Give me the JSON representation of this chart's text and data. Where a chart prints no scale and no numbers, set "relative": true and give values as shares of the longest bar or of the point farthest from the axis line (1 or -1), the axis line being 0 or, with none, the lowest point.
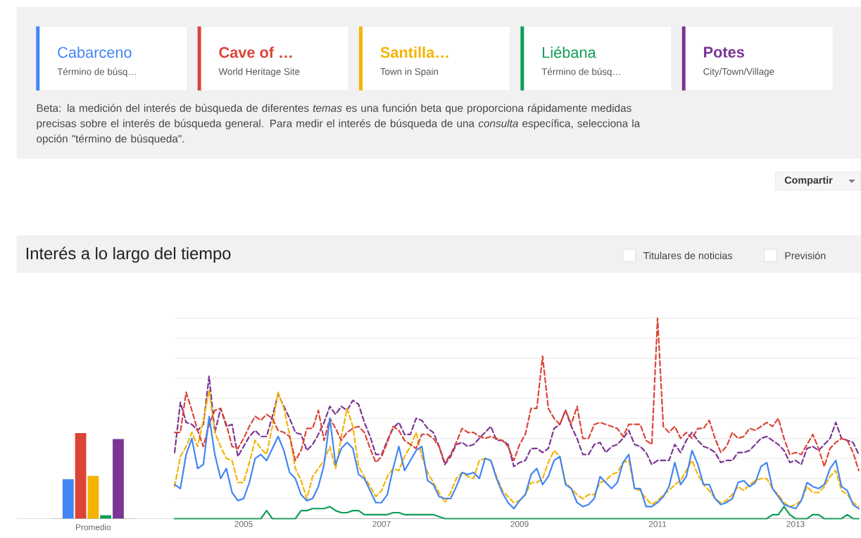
{
  "chart_data": [
    {
      "type": "line",
      "title": "Interés a lo largo del tiempo",
      "relative": true,
      "grid": "y",
      "legend": "top",
      "annotations": [
        "Término de búsq…",
        "World Heritage Site",
        "Town in Spain",
        "Término de búsq…",
        "City/Town/Village",
        "Beta: la medición del interés de búsqueda de diferentes *temas* es una función beta que proporciona rápidamente medidas precisas sobre el interés de búsqueda general. Para medir el interés de búsqueda de una *consulta* específica, selecciona la opción \"término de búsqueda\".",
        "Compartir",
        "Titulares de noticias",
        "Previsión"
      ],
      "xlim": [
        "2004-01",
        "2013-12"
      ],
      "xticks": [
        "2005",
        "2007",
        "2009",
        "2011",
        "2013"
      ],
      "x": [
        "2004-01",
        "2004-02",
        "2004-03",
        "2004-04",
        "2004-05",
        "2004-06",
        "2004-07",
        "2004-08",
        "2004-09",
        "2004-10",
        "2004-11",
        "2004-12",
        "2005-01",
        "2005-02",
        "2005-03",
        "2005-04",
        "2005-05",
        "2005-06",
        "2005-07",
        "2005-08",
        "2005-09",
        "2005-10",
        "2005-11",
        "2005-12",
        "2006-01",
        "2006-02",
        "2006-03",
        "2006-04",
        "2006-05",
        "2006-06",
        "2006-07",
        "2006-08",
        "2006-09",
        "2006-10",
        "2006-11",
        "2006-12",
        "2007-01",
        "2007-02",
        "2007-03",
        "2007-04",
        "2007-05",
        "2007-06",
        "2007-07",
        "2007-08",
        "2007-09",
        "2007-10",
        "2007-11",
        "2007-12",
        "2008-01",
        "2008-02",
        "2008-03",
        "2008-04",
        "2008-05",
        "2008-06",
        "2008-07",
        "2008-08",
        "2008-09",
        "2008-10",
        "2008-11",
        "2008-12",
        "2009-01",
        "2009-02",
        "2009-03",
        "2009-04",
        "2009-05",
        "2009-06",
        "2009-07",
        "2009-08",
        "2009-09",
        "2009-10",
        "2009-11",
        "2009-12",
        "2010-01",
        "2010-02",
        "2010-03",
        "2010-04",
        "2010-05",
        "2010-06",
        "2010-07",
        "2010-08",
        "2010-09",
        "2010-10",
        "2010-11",
        "2010-12",
        "2011-01",
        "2011-02",
        "2011-03",
        "2011-04",
        "2011-05",
        "2011-06",
        "2011-07",
        "2011-08",
        "2011-09",
        "2011-10",
        "2011-11",
        "2011-12",
        "2012-01",
        "2012-02",
        "2012-03",
        "2012-04",
        "2012-05",
        "2012-06",
        "2012-07",
        "2012-08",
        "2012-09",
        "2012-10",
        "2012-11",
        "2012-12",
        "2013-01",
        "2013-02",
        "2013-03",
        "2013-04",
        "2013-05",
        "2013-06",
        "2013-07",
        "2013-08",
        "2013-09",
        "2013-10",
        "2013-11",
        "2013-12"
      ],
      "series": [
        {
          "name": "Cabarceno",
          "color": "#4285f4",
          "line_style": "solid",
          "values": [
            0.17,
            0.15,
            0.32,
            0.4,
            0.25,
            0.27,
            0.51,
            0.32,
            0.2,
            0.25,
            0.13,
            0.09,
            0.1,
            0.18,
            0.3,
            0.32,
            0.29,
            0.35,
            0.41,
            0.34,
            0.23,
            0.2,
            0.12,
            0.09,
            0.1,
            0.16,
            0.27,
            0.5,
            0.27,
            0.35,
            0.38,
            0.35,
            0.22,
            0.2,
            0.14,
            0.08,
            0.08,
            0.12,
            0.25,
            0.36,
            0.24,
            0.29,
            0.34,
            0.36,
            0.19,
            0.17,
            0.11,
            0.1,
            0.1,
            0.16,
            0.23,
            0.22,
            0.23,
            0.2,
            0.3,
            0.29,
            0.2,
            0.13,
            0.08,
            0.05,
            0.09,
            0.12,
            0.22,
            0.25,
            0.17,
            0.21,
            0.29,
            0.31,
            0.17,
            0.15,
            0.08,
            0.06,
            0.07,
            0.1,
            0.21,
            0.18,
            0.15,
            0.18,
            0.28,
            0.32,
            0.15,
            0.15,
            0.06,
            0.06,
            0.08,
            0.11,
            0.16,
            0.28,
            0.17,
            0.21,
            0.34,
            0.27,
            0.17,
            0.17,
            0.1,
            0.07,
            0.08,
            0.1,
            0.18,
            0.19,
            0.16,
            0.18,
            0.26,
            0.28,
            0.15,
            0.11,
            0.07,
            0.06,
            0.05,
            0.09,
            0.18,
            0.16,
            0.15,
            0.17,
            0.25,
            0.29,
            0.16,
            0.14,
            0.07,
            0.05
          ]
        },
        {
          "name": "Cave of …",
          "color": "#db4437",
          "line_style": "dashed",
          "values": [
            0.43,
            0.43,
            0.63,
            0.54,
            0.44,
            0.36,
            0.47,
            0.54,
            0.55,
            0.47,
            0.36,
            0.35,
            0.4,
            0.46,
            0.51,
            0.49,
            0.52,
            0.5,
            0.44,
            0.43,
            0.41,
            0.29,
            0.34,
            0.45,
            0.45,
            0.54,
            0.39,
            0.5,
            0.45,
            0.39,
            0.43,
            0.45,
            0.46,
            0.43,
            0.35,
            0.28,
            0.31,
            0.38,
            0.46,
            0.44,
            0.39,
            0.37,
            0.35,
            0.42,
            0.42,
            0.4,
            0.36,
            0.28,
            0.32,
            0.38,
            0.45,
            0.43,
            0.43,
            0.41,
            0.4,
            0.41,
            0.4,
            0.39,
            0.36,
            0.29,
            0.37,
            0.42,
            0.55,
            0.55,
            0.81,
            0.55,
            0.5,
            0.47,
            0.54,
            0.47,
            0.56,
            0.4,
            0.4,
            0.47,
            0.48,
            0.47,
            0.46,
            0.45,
            0.41,
            0.47,
            0.47,
            0.47,
            0.39,
            0.37,
            1,
            0.46,
            0.43,
            0.46,
            0.4,
            0.43,
            0.4,
            0.45,
            0.45,
            0.49,
            0.4,
            0.33,
            0.36,
            0.43,
            0.4,
            0.41,
            0.45,
            0.44,
            0.46,
            0.48,
            0.46,
            0.5,
            0.4,
            0.32,
            0.33,
            0.32,
            0.37,
            0.42,
            0.35,
            0.26,
            0.35,
            0.38,
            0.4,
            0.39,
            0.33,
            0.24
          ]
        },
        {
          "name": "Santilla…",
          "color": "#f4b400",
          "line_style": "dashed",
          "values": [
            0.16,
            0.31,
            0.36,
            0.43,
            0.36,
            0.49,
            0.64,
            0.43,
            0.36,
            0.3,
            0.29,
            0.18,
            0.18,
            0.28,
            0.39,
            0.35,
            0.32,
            0.46,
            0.63,
            0.55,
            0.42,
            0.25,
            0.19,
            0.1,
            0.21,
            0.25,
            0.29,
            0.36,
            0.25,
            0.41,
            0.55,
            0.46,
            0.26,
            0.21,
            0.16,
            0.11,
            0.14,
            0.21,
            0.25,
            0.24,
            0.31,
            0.36,
            0.43,
            0.31,
            0.23,
            0.18,
            0.13,
            0.08,
            0.13,
            0.2,
            0.23,
            0.21,
            0.2,
            0.29,
            0.3,
            0.29,
            0.21,
            0.14,
            0.11,
            0.08,
            0.09,
            0.12,
            0.18,
            0.18,
            0.2,
            0.28,
            0.34,
            0.31,
            0.18,
            0.15,
            0.12,
            0.1,
            0.12,
            0.12,
            0.18,
            0.19,
            0.22,
            0.23,
            0.28,
            0.29,
            0.15,
            0.14,
            0.1,
            0.07,
            0.09,
            0.12,
            0.14,
            0.17,
            0.19,
            0.24,
            0.29,
            0.22,
            0.17,
            0.14,
            0.1,
            0.08,
            0.09,
            0.12,
            0.16,
            0.14,
            0.17,
            0.19,
            0.2,
            0.2,
            0.15,
            0.12,
            0.08,
            0.06,
            0.07,
            0.09,
            0.16,
            0.13,
            0.13,
            0.16,
            0.21,
            0.24,
            0.14,
            0.12,
            0.08,
            0.06
          ]
        },
        {
          "name": "Liébana",
          "color": "#0f9d58",
          "line_style": "solid",
          "values": [
            0,
            0,
            0,
            0,
            0,
            0,
            0,
            0,
            0,
            0,
            0,
            0,
            0,
            0,
            0,
            0,
            0.04,
            0,
            0,
            0,
            0,
            0,
            0.04,
            0.04,
            0.05,
            0.05,
            0.05,
            0.06,
            0.04,
            0.03,
            0.03,
            0.04,
            0.04,
            0.02,
            0.02,
            0.02,
            0.02,
            0.02,
            0.03,
            0.03,
            0.02,
            0.02,
            0.02,
            0.02,
            0.02,
            0.02,
            0.01,
            0,
            0,
            0,
            0,
            0,
            0,
            0,
            0,
            0,
            0,
            0,
            0,
            0,
            0,
            0,
            0,
            0,
            0,
            0,
            0,
            0,
            0,
            0,
            0,
            0,
            0,
            0,
            0,
            0,
            0,
            0,
            0,
            0,
            0,
            0,
            0,
            0,
            0,
            0,
            0,
            0,
            0,
            0,
            0,
            0,
            0,
            0,
            0,
            0,
            0,
            0,
            0,
            0,
            0,
            0,
            0,
            0,
            0.02,
            0.02,
            0.06,
            0.02,
            0,
            0,
            0,
            0.02,
            0.02,
            0,
            0,
            0,
            0,
            0.02,
            0,
            0
          ]
        },
        {
          "name": "Potes",
          "color": "#7b3593",
          "line_style": "dashed",
          "values": [
            0.33,
            0.58,
            0.48,
            0.47,
            0.44,
            0.47,
            0.71,
            0.43,
            0.55,
            0.46,
            0.47,
            0.31,
            0.36,
            0.41,
            0.44,
            0.41,
            0.41,
            0.51,
            0.62,
            0.56,
            0.5,
            0.43,
            0.42,
            0.34,
            0.37,
            0.42,
            0.48,
            0.56,
            0.52,
            0.56,
            0.54,
            0.59,
            0.57,
            0.48,
            0.41,
            0.32,
            0.32,
            0.39,
            0.45,
            0.48,
            0.42,
            0.42,
            0.5,
            0.49,
            0.45,
            0.43,
            0.36,
            0.27,
            0.31,
            0.37,
            0.38,
            0.36,
            0.37,
            0.4,
            0.43,
            0.46,
            0.39,
            0.39,
            0.37,
            0.26,
            0.28,
            0.29,
            0.35,
            0.35,
            0.33,
            0.35,
            0.45,
            0.47,
            0.54,
            0.46,
            0.4,
            0.32,
            0.32,
            0.37,
            0.38,
            0.33,
            0.36,
            0.37,
            0.4,
            0.44,
            0.37,
            0.36,
            0.33,
            0.27,
            0.29,
            0.29,
            0.29,
            0.37,
            0.33,
            0.39,
            0.43,
            0.39,
            0.36,
            0.35,
            0.33,
            0.28,
            0.29,
            0.29,
            0.33,
            0.33,
            0.34,
            0.37,
            0.4,
            0.41,
            0.39,
            0.37,
            0.34,
            0.28,
            0.29,
            0.27,
            0.35,
            0.36,
            0.34,
            0.37,
            0.4,
            0.48,
            0.4,
            0.39,
            0.38,
            0.32
          ]
        }
      ]
    },
    {
      "type": "bar",
      "relative": true,
      "categories": [
        "Promedio"
      ],
      "series": [
        {
          "color": "#4285f4",
          "values": [
            0.46
          ]
        },
        {
          "color": "#db4437",
          "values": [
            1
          ]
        },
        {
          "color": "#f4b400",
          "values": [
            0.5
          ]
        },
        {
          "color": "#0f9d58",
          "values": [
            0.04
          ]
        },
        {
          "color": "#7b3593",
          "values": [
            0.93
          ]
        }
      ]
    }
  ]
}
